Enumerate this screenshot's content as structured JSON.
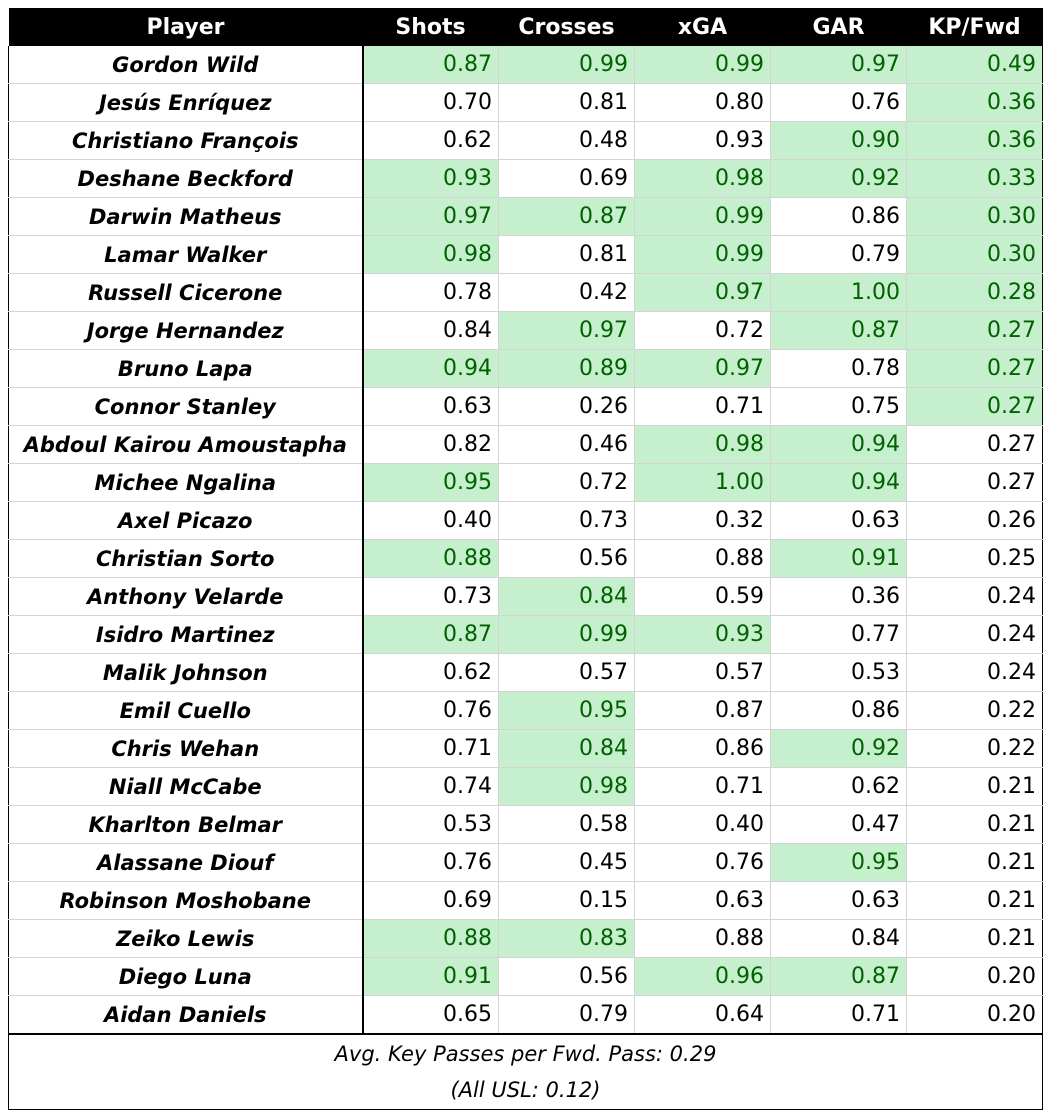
{
  "table": {
    "header": [
      "Player",
      "Shots",
      "Crosses",
      "xGA",
      "GAR",
      "KP/Fwd"
    ],
    "highlight_fill": "#c6efce",
    "highlight_text": "#006100",
    "rows": [
      {
        "player": "Gordon Wild",
        "cells": [
          "0.87",
          "0.99",
          "0.99",
          "0.97",
          "0.49"
        ],
        "highlight": [
          true,
          true,
          true,
          true,
          true
        ]
      },
      {
        "player": "Jesús Enríquez",
        "cells": [
          "0.70",
          "0.81",
          "0.80",
          "0.76",
          "0.36"
        ],
        "highlight": [
          false,
          false,
          false,
          false,
          true
        ]
      },
      {
        "player": "Christiano François",
        "cells": [
          "0.62",
          "0.48",
          "0.93",
          "0.90",
          "0.36"
        ],
        "highlight": [
          false,
          false,
          false,
          true,
          true
        ]
      },
      {
        "player": "Deshane Beckford",
        "cells": [
          "0.93",
          "0.69",
          "0.98",
          "0.92",
          "0.33"
        ],
        "highlight": [
          true,
          false,
          true,
          true,
          true
        ]
      },
      {
        "player": "Darwin Matheus",
        "cells": [
          "0.97",
          "0.87",
          "0.99",
          "0.86",
          "0.30"
        ],
        "highlight": [
          true,
          true,
          true,
          false,
          true
        ]
      },
      {
        "player": "Lamar Walker",
        "cells": [
          "0.98",
          "0.81",
          "0.99",
          "0.79",
          "0.30"
        ],
        "highlight": [
          true,
          false,
          true,
          false,
          true
        ]
      },
      {
        "player": "Russell Cicerone",
        "cells": [
          "0.78",
          "0.42",
          "0.97",
          "1.00",
          "0.28"
        ],
        "highlight": [
          false,
          false,
          true,
          true,
          true
        ]
      },
      {
        "player": "Jorge Hernandez",
        "cells": [
          "0.84",
          "0.97",
          "0.72",
          "0.87",
          "0.27"
        ],
        "highlight": [
          false,
          true,
          false,
          true,
          true
        ]
      },
      {
        "player": "Bruno Lapa",
        "cells": [
          "0.94",
          "0.89",
          "0.97",
          "0.78",
          "0.27"
        ],
        "highlight": [
          true,
          true,
          true,
          false,
          true
        ]
      },
      {
        "player": "Connor Stanley",
        "cells": [
          "0.63",
          "0.26",
          "0.71",
          "0.75",
          "0.27"
        ],
        "highlight": [
          false,
          false,
          false,
          false,
          true
        ]
      },
      {
        "player": "Abdoul Kairou Amoustapha",
        "cells": [
          "0.82",
          "0.46",
          "0.98",
          "0.94",
          "0.27"
        ],
        "highlight": [
          false,
          false,
          true,
          true,
          false
        ]
      },
      {
        "player": "Michee Ngalina",
        "cells": [
          "0.95",
          "0.72",
          "1.00",
          "0.94",
          "0.27"
        ],
        "highlight": [
          true,
          false,
          true,
          true,
          false
        ]
      },
      {
        "player": "Axel Picazo",
        "cells": [
          "0.40",
          "0.73",
          "0.32",
          "0.63",
          "0.26"
        ],
        "highlight": [
          false,
          false,
          false,
          false,
          false
        ]
      },
      {
        "player": "Christian Sorto",
        "cells": [
          "0.88",
          "0.56",
          "0.88",
          "0.91",
          "0.25"
        ],
        "highlight": [
          true,
          false,
          false,
          true,
          false
        ]
      },
      {
        "player": "Anthony Velarde",
        "cells": [
          "0.73",
          "0.84",
          "0.59",
          "0.36",
          "0.24"
        ],
        "highlight": [
          false,
          true,
          false,
          false,
          false
        ]
      },
      {
        "player": "Isidro Martinez",
        "cells": [
          "0.87",
          "0.99",
          "0.93",
          "0.77",
          "0.24"
        ],
        "highlight": [
          true,
          true,
          true,
          false,
          false
        ]
      },
      {
        "player": "Malik Johnson",
        "cells": [
          "0.62",
          "0.57",
          "0.57",
          "0.53",
          "0.24"
        ],
        "highlight": [
          false,
          false,
          false,
          false,
          false
        ]
      },
      {
        "player": "Emil Cuello",
        "cells": [
          "0.76",
          "0.95",
          "0.87",
          "0.86",
          "0.22"
        ],
        "highlight": [
          false,
          true,
          false,
          false,
          false
        ]
      },
      {
        "player": "Chris Wehan",
        "cells": [
          "0.71",
          "0.84",
          "0.86",
          "0.92",
          "0.22"
        ],
        "highlight": [
          false,
          true,
          false,
          true,
          false
        ]
      },
      {
        "player": "Niall McCabe",
        "cells": [
          "0.74",
          "0.98",
          "0.71",
          "0.62",
          "0.21"
        ],
        "highlight": [
          false,
          true,
          false,
          false,
          false
        ]
      },
      {
        "player": "Kharlton Belmar",
        "cells": [
          "0.53",
          "0.58",
          "0.40",
          "0.47",
          "0.21"
        ],
        "highlight": [
          false,
          false,
          false,
          false,
          false
        ]
      },
      {
        "player": "Alassane Diouf",
        "cells": [
          "0.76",
          "0.45",
          "0.76",
          "0.95",
          "0.21"
        ],
        "highlight": [
          false,
          false,
          false,
          true,
          false
        ]
      },
      {
        "player": "Robinson Moshobane",
        "cells": [
          "0.69",
          "0.15",
          "0.63",
          "0.63",
          "0.21"
        ],
        "highlight": [
          false,
          false,
          false,
          false,
          false
        ]
      },
      {
        "player": "Zeiko Lewis",
        "cells": [
          "0.88",
          "0.83",
          "0.88",
          "0.84",
          "0.21"
        ],
        "highlight": [
          true,
          true,
          false,
          false,
          false
        ]
      },
      {
        "player": "Diego Luna",
        "cells": [
          "0.91",
          "0.56",
          "0.96",
          "0.87",
          "0.20"
        ],
        "highlight": [
          true,
          false,
          true,
          true,
          false
        ]
      },
      {
        "player": "Aidan Daniels",
        "cells": [
          "0.65",
          "0.79",
          "0.64",
          "0.71",
          "0.20"
        ],
        "highlight": [
          false,
          false,
          false,
          false,
          false
        ]
      }
    ],
    "footer": [
      "Avg. Key Passes per Fwd. Pass: 0.29",
      "(All USL: 0.12)"
    ]
  }
}
